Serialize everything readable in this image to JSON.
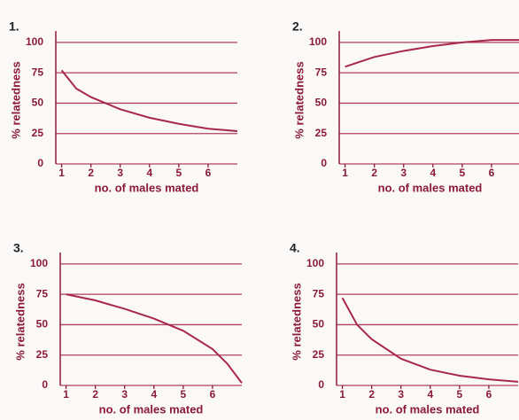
{
  "chart_data": [
    {
      "type": "line",
      "title": "1.",
      "x_label": "no. of males mated",
      "y_label": "% relatedness",
      "x": [
        1,
        1.5,
        2,
        3,
        4,
        5,
        6,
        7
      ],
      "values": [
        77,
        62,
        55,
        45,
        38,
        33,
        29,
        27
      ],
      "color": "#a8284a",
      "xlim": [
        0.8,
        7
      ],
      "ylim": [
        0,
        105
      ],
      "xticks": [
        1,
        2,
        3,
        4,
        5,
        6
      ],
      "yticks": [
        0,
        25,
        50,
        75,
        100
      ],
      "grid": true
    },
    {
      "type": "line",
      "title": "2.",
      "x_label": "no. of males mated",
      "y_label": "% relatedness",
      "x": [
        1,
        2,
        3,
        4,
        5,
        6,
        7
      ],
      "values": [
        80,
        88,
        93,
        97,
        100,
        102,
        102
      ],
      "color": "#a8284a",
      "xlim": [
        0.8,
        7
      ],
      "ylim": [
        0,
        105
      ],
      "xticks": [
        1,
        2,
        3,
        4,
        5,
        6
      ],
      "yticks": [
        0,
        25,
        50,
        75,
        100
      ],
      "grid": true
    },
    {
      "type": "line",
      "title": "3.",
      "x_label": "no. of males mated",
      "y_label": "% relatedness",
      "x": [
        1,
        2,
        3,
        4,
        5,
        6,
        6.5,
        7
      ],
      "values": [
        75,
        70,
        63,
        55,
        45,
        30,
        18,
        2
      ],
      "color": "#a8284a",
      "xlim": [
        0.8,
        7
      ],
      "ylim": [
        0,
        105
      ],
      "xticks": [
        1,
        2,
        3,
        4,
        5,
        6
      ],
      "yticks": [
        0,
        25,
        50,
        75,
        100
      ],
      "grid": true
    },
    {
      "type": "line",
      "title": "4.",
      "x_label": "no. of males mated",
      "y_label": "% relatedness",
      "x": [
        1,
        1.5,
        2,
        3,
        4,
        5,
        6,
        7
      ],
      "values": [
        72,
        50,
        38,
        22,
        13,
        8,
        5,
        3
      ],
      "color": "#a8284a",
      "xlim": [
        0.8,
        7
      ],
      "ylim": [
        0,
        105
      ],
      "xticks": [
        1,
        2,
        3,
        4,
        5,
        6
      ],
      "yticks": [
        0,
        25,
        50,
        75,
        100
      ],
      "grid": true
    }
  ]
}
